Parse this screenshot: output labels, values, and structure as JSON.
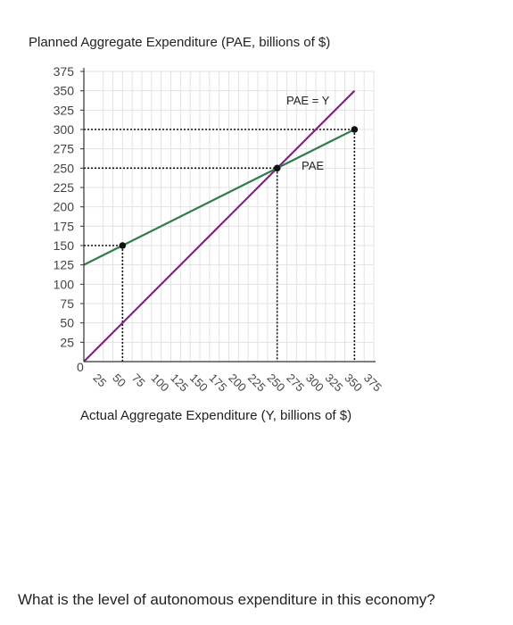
{
  "question": {
    "text": "What is the level of autonomous expenditure in this economy?"
  },
  "chart_data": {
    "type": "line",
    "title": "",
    "ylabel": "Planned Aggregate Expenditure (PAE, billions of $)",
    "xlabel": "Actual Aggregate Expenditure (Y, billions of $)",
    "xlim": [
      0,
      375
    ],
    "ylim": [
      0,
      375
    ],
    "x_ticks": [
      "25",
      "50",
      "75",
      "100",
      "125",
      "150",
      "175",
      "200",
      "225",
      "250",
      "275",
      "300",
      "325",
      "350",
      "375"
    ],
    "y_ticks": [
      "375",
      "350",
      "325",
      "300",
      "275",
      "250",
      "225",
      "200",
      "175",
      "150",
      "125",
      "100",
      "75",
      "50",
      "25"
    ],
    "origin_label": "0",
    "grid": true,
    "series": [
      {
        "name": "PAE = Y",
        "color": "#8b1a8b",
        "points": [
          [
            0,
            0
          ],
          [
            350,
            350
          ]
        ]
      },
      {
        "name": "PAE",
        "color": "#2e7d4a",
        "points": [
          [
            0,
            125
          ],
          [
            350,
            300
          ]
        ]
      }
    ],
    "marked_points": [
      {
        "x": 50,
        "y": 150
      },
      {
        "x": 250,
        "y": 250
      },
      {
        "x": 350,
        "y": 300
      }
    ],
    "colors": {
      "grid": "#e3e3e3",
      "axis": "#333333",
      "guide": "#111111"
    }
  }
}
